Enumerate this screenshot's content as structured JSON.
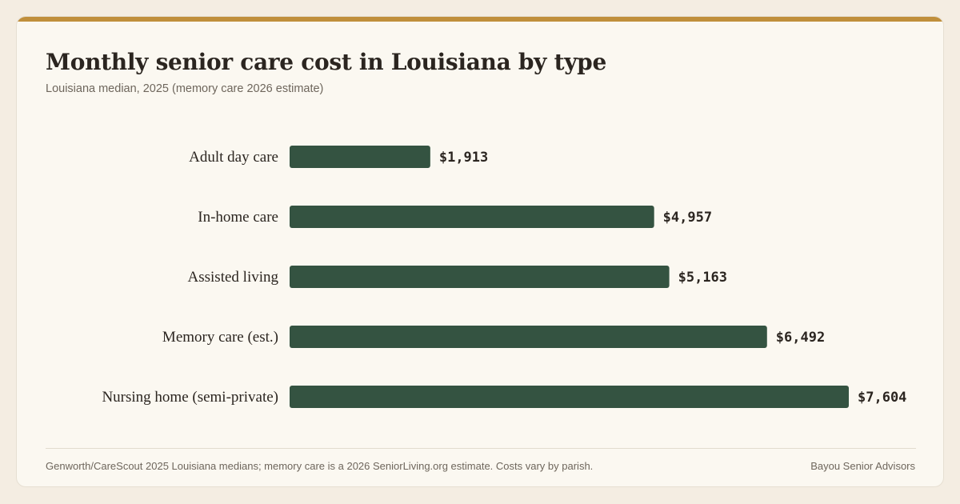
{
  "chart_data": {
    "type": "bar",
    "orientation": "horizontal",
    "title": "Monthly senior care cost in Louisiana by type",
    "subtitle": "Louisiana median, 2025 (memory care 2026 estimate)",
    "categories": [
      "Adult day care",
      "In-home care",
      "Assisted living",
      "Memory care (est.)",
      "Nursing home (semi-private)"
    ],
    "values": [
      1913,
      4957,
      5163,
      6492,
      7604
    ],
    "value_labels": [
      "$1,913",
      "$4,957",
      "$5,163",
      "$6,492",
      "$7,604"
    ],
    "xlim": [
      0,
      7604
    ],
    "grid": false,
    "bar_color": "#345341"
  },
  "footer": {
    "source": "Genworth/CareScout 2025 Louisiana medians; memory care is a 2026 SeniorLiving.org estimate. Costs vary by parish.",
    "brand": "Bayou Senior Advisors"
  }
}
